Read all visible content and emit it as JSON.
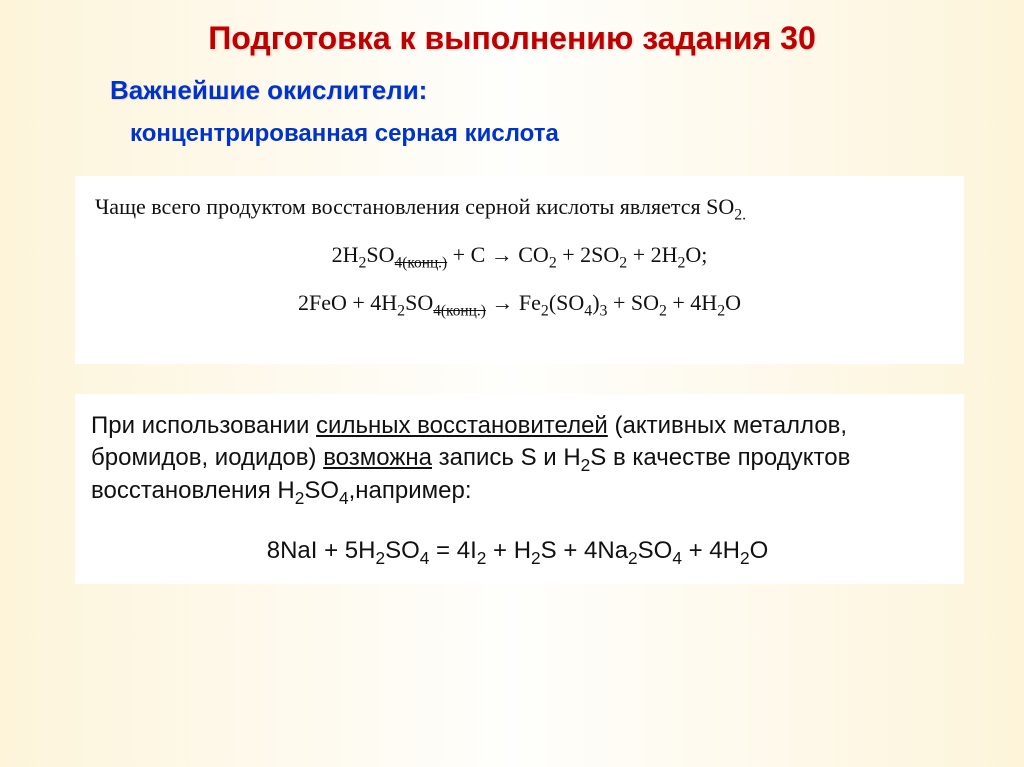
{
  "slide": {
    "title": "Подготовка к выполнению задания 30",
    "subtitle": "Важнейшие окислители:",
    "topic": "концентрированная серная кислота",
    "box1": {
      "intro_prefix": "Чаще всего продуктом восстановления серной кислоты является SO",
      "intro_sub": "2.",
      "eq1": {
        "a": "2H",
        "b": "2",
        "c": "SO",
        "d": "4(конц.)",
        "e": " + C → CO",
        "f": "2",
        "g": " + 2SO",
        "h": "2",
        "i": " + 2H",
        "j": "2",
        "k": "O;"
      },
      "eq2": {
        "a": "2FeO + 4H",
        "b": "2",
        "c": "SO",
        "d": "4(конц.)",
        "e": " → Fe",
        "f": "2",
        "g": "(SO",
        "h": "4",
        "i": ")",
        "j": "3",
        "k": " + SO",
        "l": "2",
        "m": " + 4H",
        "n": "2",
        "o": "O"
      }
    },
    "box2": {
      "p1a": "При использовании ",
      "p1u1": "сильных восстановителей",
      "p1b": " (активных металлов, бромидов, иодидов) ",
      "p1u2": "возможна",
      "p1c": " запись S и H",
      "p1sub1": "2",
      "p1d": "S в качестве продуктов восстановления H",
      "p1sub2": "2",
      "p1e": "SO",
      "p1sub3": "4",
      "p1f": ",например:",
      "eq3": {
        "a": "8NaI + 5H",
        "b": "2",
        "c": "SO",
        "d": "4",
        "e": " = 4I",
        "f": "2",
        "g": " + H",
        "h": "2",
        "i": "S + 4Na",
        "j": "2",
        "k": "SO",
        "l": "4",
        "m": " + 4H",
        "n": "2",
        "o": "O"
      }
    }
  },
  "colors": {
    "title": "#c00000",
    "subtitle": "#0033cc",
    "bg_left": "#fdf4da",
    "bg_mid": "#fefefc",
    "box_bg": "#ffffff",
    "text": "#111111"
  }
}
